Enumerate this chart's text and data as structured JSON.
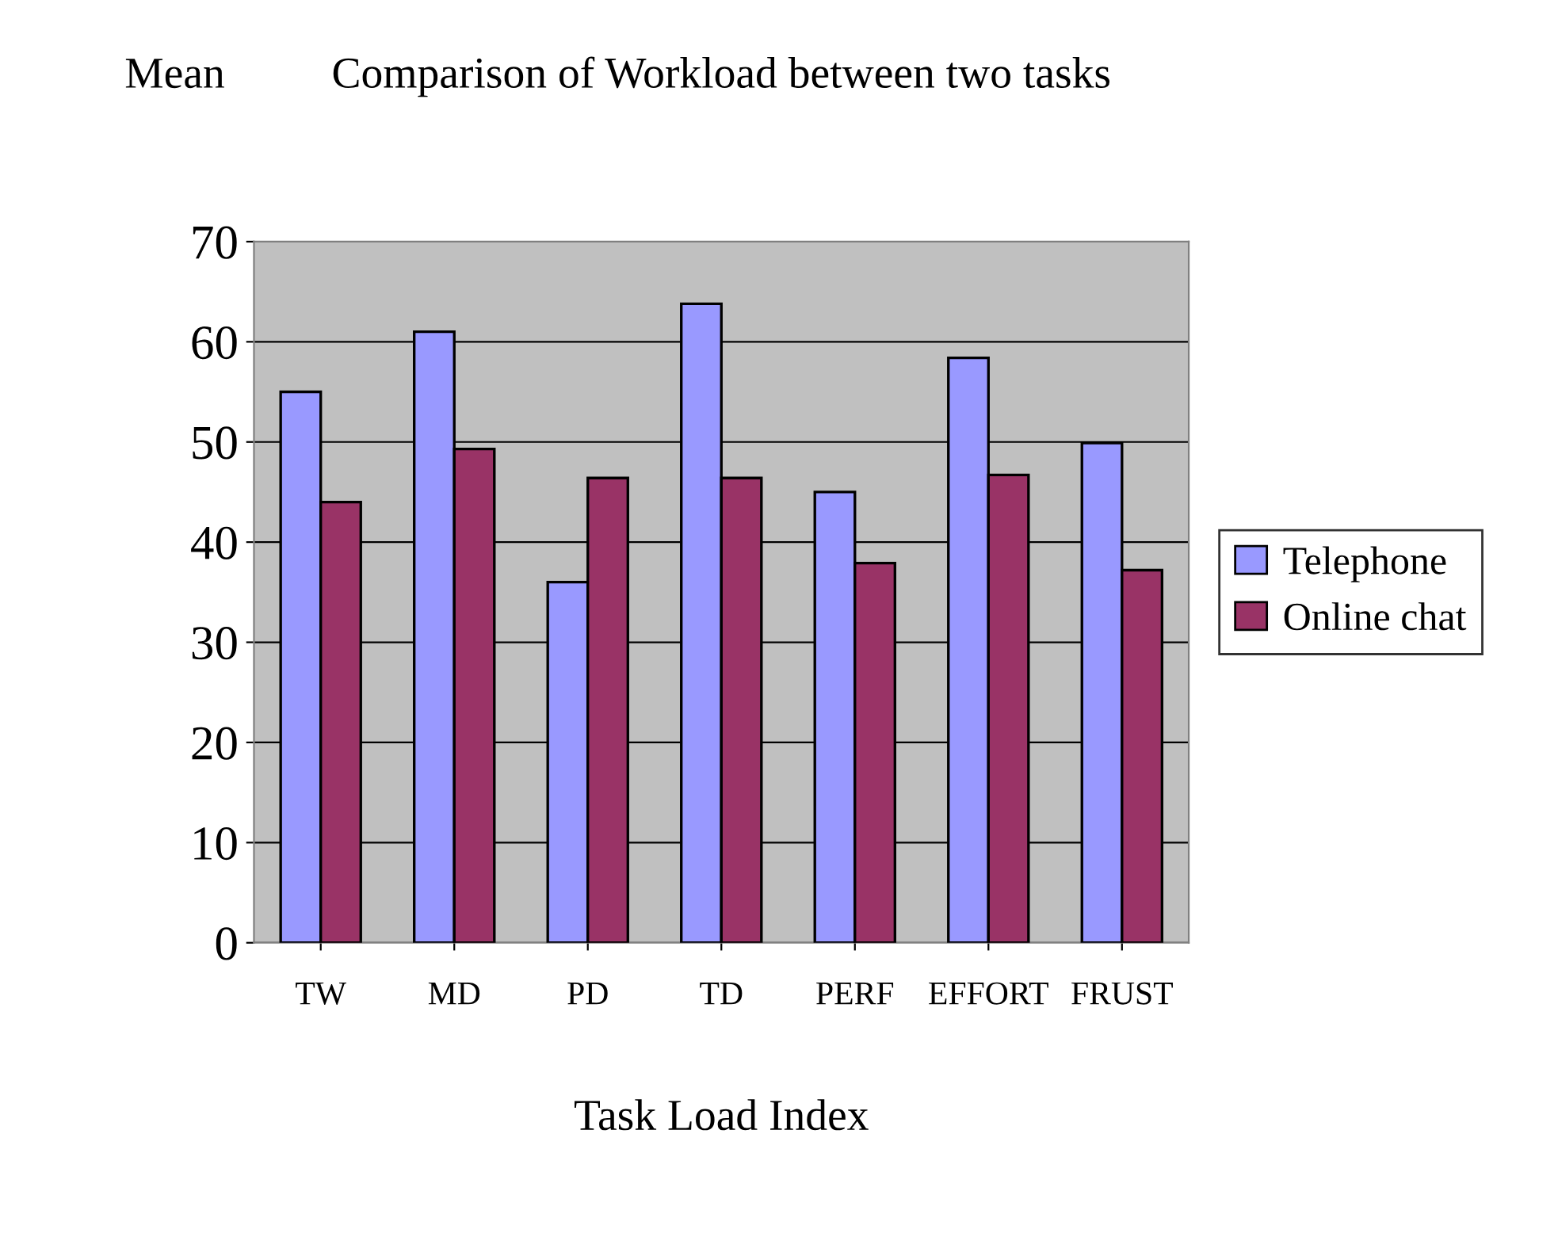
{
  "chart_data": {
    "type": "bar",
    "title": "Comparison of Workload between two tasks",
    "xlabel": "Task Load Index",
    "ylabel": "Mean",
    "categories": [
      "TW",
      "MD",
      "PD",
      "TD",
      "PERF",
      "EFFORT",
      "FRUST"
    ],
    "series": [
      {
        "name": "Telephone",
        "color": "#9999ff",
        "values": [
          55,
          61,
          36,
          63.8,
          45,
          58.4,
          49.9
        ]
      },
      {
        "name": "Online chat",
        "color": "#993366",
        "values": [
          44,
          49.3,
          46.4,
          46.4,
          37.9,
          46.7,
          37.2
        ]
      }
    ],
    "ylim": [
      0,
      70
    ],
    "yticks": [
      0,
      10,
      20,
      30,
      40,
      50,
      60,
      70
    ],
    "grid": "y",
    "legend": "right"
  }
}
